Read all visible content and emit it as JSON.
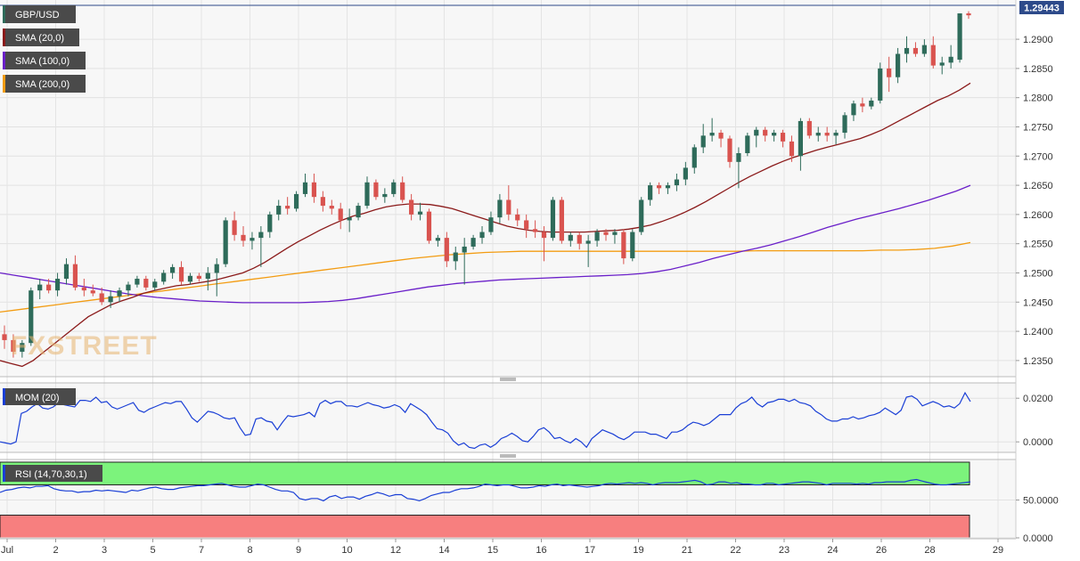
{
  "chart_data": {
    "type": "candlestick",
    "legend": [
      {
        "label": "GBP/USD",
        "color": "#2e6b5a"
      },
      {
        "label": "SMA (20,0)",
        "color": "#8b1a1a"
      },
      {
        "label": "SMA (100,0)",
        "color": "#6a1fc9"
      },
      {
        "label": "SMA (200,0)",
        "color": "#f39c12"
      }
    ],
    "last_price": "1.29443",
    "x_labels": [
      "Jul",
      "2",
      "3",
      "5",
      "7",
      "8",
      "9",
      "10",
      "12",
      "14",
      "15",
      "16",
      "17",
      "19",
      "21",
      "22",
      "23",
      "24",
      "26",
      "28",
      "29"
    ],
    "y_ticks": [
      "1.2350",
      "1.2400",
      "1.2450",
      "1.2500",
      "1.2550",
      "1.2600",
      "1.2650",
      "1.2700",
      "1.2750",
      "1.2800",
      "1.2850",
      "1.2900"
    ],
    "ylim": [
      1.233,
      1.2955
    ],
    "candles": [
      [
        1.2395,
        1.241,
        1.237,
        1.2385
      ],
      [
        1.2385,
        1.2395,
        1.2355,
        1.2365
      ],
      [
        1.2365,
        1.2385,
        1.2355,
        1.238
      ],
      [
        1.238,
        1.2475,
        1.2375,
        1.247
      ],
      [
        1.247,
        1.249,
        1.2455,
        1.248
      ],
      [
        1.248,
        1.249,
        1.2465,
        1.247
      ],
      [
        1.247,
        1.25,
        1.246,
        1.249
      ],
      [
        1.249,
        1.2525,
        1.248,
        1.2515
      ],
      [
        1.2515,
        1.253,
        1.247,
        1.2475
      ],
      [
        1.2475,
        1.249,
        1.246,
        1.247
      ],
      [
        1.247,
        1.248,
        1.246,
        1.2465
      ],
      [
        1.2465,
        1.2475,
        1.2445,
        1.245
      ],
      [
        1.245,
        1.247,
        1.244,
        1.246
      ],
      [
        1.246,
        1.2475,
        1.245,
        1.247
      ],
      [
        1.247,
        1.2485,
        1.246,
        1.248
      ],
      [
        1.248,
        1.2495,
        1.2475,
        1.249
      ],
      [
        1.249,
        1.2495,
        1.247,
        1.2475
      ],
      [
        1.2475,
        1.249,
        1.247,
        1.2485
      ],
      [
        1.2485,
        1.2505,
        1.248,
        1.25
      ],
      [
        1.25,
        1.2515,
        1.249,
        1.251
      ],
      [
        1.251,
        1.252,
        1.248,
        1.2485
      ],
      [
        1.2485,
        1.25,
        1.248,
        1.2495
      ],
      [
        1.2495,
        1.25,
        1.2485,
        1.249
      ],
      [
        1.249,
        1.251,
        1.247,
        1.25
      ],
      [
        1.25,
        1.2525,
        1.246,
        1.2515
      ],
      [
        1.2515,
        1.2595,
        1.251,
        1.259
      ],
      [
        1.259,
        1.2605,
        1.2555,
        1.2565
      ],
      [
        1.2565,
        1.258,
        1.2545,
        1.2555
      ],
      [
        1.2555,
        1.257,
        1.254,
        1.256
      ],
      [
        1.256,
        1.258,
        1.251,
        1.257
      ],
      [
        1.257,
        1.2605,
        1.256,
        1.26
      ],
      [
        1.26,
        1.2625,
        1.259,
        1.2615
      ],
      [
        1.2615,
        1.263,
        1.26,
        1.261
      ],
      [
        1.261,
        1.264,
        1.2605,
        1.2635
      ],
      [
        1.2635,
        1.267,
        1.263,
        1.2655
      ],
      [
        1.2655,
        1.267,
        1.262,
        1.263
      ],
      [
        1.263,
        1.264,
        1.2605,
        1.2615
      ],
      [
        1.2615,
        1.2625,
        1.26,
        1.261
      ],
      [
        1.261,
        1.262,
        1.2575,
        1.259
      ],
      [
        1.259,
        1.261,
        1.257,
        1.2595
      ],
      [
        1.2595,
        1.262,
        1.259,
        1.2615
      ],
      [
        1.2615,
        1.2665,
        1.261,
        1.2655
      ],
      [
        1.2655,
        1.266,
        1.2625,
        1.263
      ],
      [
        1.263,
        1.2645,
        1.262,
        1.2635
      ],
      [
        1.2635,
        1.266,
        1.263,
        1.2655
      ],
      [
        1.2655,
        1.2665,
        1.262,
        1.2625
      ],
      [
        1.2625,
        1.2635,
        1.259,
        1.26
      ],
      [
        1.26,
        1.262,
        1.259,
        1.2605
      ],
      [
        1.2605,
        1.261,
        1.255,
        1.2555
      ],
      [
        1.2555,
        1.2565,
        1.2545,
        1.256
      ],
      [
        1.256,
        1.257,
        1.251,
        1.252
      ],
      [
        1.252,
        1.2545,
        1.2505,
        1.2535
      ],
      [
        1.2535,
        1.256,
        1.248,
        1.2545
      ],
      [
        1.2545,
        1.2565,
        1.254,
        1.256
      ],
      [
        1.256,
        1.258,
        1.255,
        1.257
      ],
      [
        1.257,
        1.2605,
        1.2565,
        1.2595
      ],
      [
        1.2595,
        1.2635,
        1.2585,
        1.2625
      ],
      [
        1.2625,
        1.265,
        1.259,
        1.26
      ],
      [
        1.26,
        1.261,
        1.258,
        1.259
      ],
      [
        1.259,
        1.26,
        1.256,
        1.2575
      ],
      [
        1.2575,
        1.259,
        1.256,
        1.257
      ],
      [
        1.257,
        1.258,
        1.252,
        1.256
      ],
      [
        1.256,
        1.263,
        1.2555,
        1.2625
      ],
      [
        1.2625,
        1.263,
        1.255,
        1.2555
      ],
      [
        1.2555,
        1.257,
        1.2545,
        1.2565
      ],
      [
        1.2565,
        1.257,
        1.254,
        1.255
      ],
      [
        1.255,
        1.2565,
        1.251,
        1.2555
      ],
      [
        1.2555,
        1.2575,
        1.2545,
        1.257
      ],
      [
        1.257,
        1.2575,
        1.2555,
        1.2565
      ],
      [
        1.2565,
        1.2575,
        1.255,
        1.257
      ],
      [
        1.257,
        1.2575,
        1.2515,
        1.2525
      ],
      [
        1.2525,
        1.2575,
        1.252,
        1.257
      ],
      [
        1.257,
        1.263,
        1.2565,
        1.2625
      ],
      [
        1.2625,
        1.2655,
        1.2615,
        1.265
      ],
      [
        1.265,
        1.2655,
        1.2635,
        1.2645
      ],
      [
        1.2645,
        1.2655,
        1.2635,
        1.265
      ],
      [
        1.265,
        1.267,
        1.264,
        1.266
      ],
      [
        1.266,
        1.269,
        1.265,
        1.268
      ],
      [
        1.268,
        1.272,
        1.267,
        1.2715
      ],
      [
        1.2715,
        1.2755,
        1.2705,
        1.2735
      ],
      [
        1.2735,
        1.2765,
        1.2725,
        1.274
      ],
      [
        1.274,
        1.2745,
        1.2715,
        1.273
      ],
      [
        1.273,
        1.2735,
        1.268,
        1.269
      ],
      [
        1.269,
        1.2715,
        1.2645,
        1.2705
      ],
      [
        1.2705,
        1.274,
        1.27,
        1.2735
      ],
      [
        1.2735,
        1.275,
        1.2715,
        1.2745
      ],
      [
        1.2745,
        1.275,
        1.2725,
        1.2735
      ],
      [
        1.2735,
        1.2745,
        1.2725,
        1.274
      ],
      [
        1.274,
        1.2745,
        1.2715,
        1.2725
      ],
      [
        1.2725,
        1.2735,
        1.269,
        1.27
      ],
      [
        1.27,
        1.2765,
        1.2675,
        1.276
      ],
      [
        1.276,
        1.2765,
        1.273,
        1.2735
      ],
      [
        1.2735,
        1.275,
        1.2725,
        1.274
      ],
      [
        1.274,
        1.275,
        1.2725,
        1.2735
      ],
      [
        1.2735,
        1.2745,
        1.272,
        1.274
      ],
      [
        1.274,
        1.2775,
        1.273,
        1.277
      ],
      [
        1.277,
        1.2795,
        1.276,
        1.279
      ],
      [
        1.279,
        1.28,
        1.2775,
        1.2785
      ],
      [
        1.2785,
        1.28,
        1.278,
        1.2795
      ],
      [
        1.2795,
        1.286,
        1.279,
        1.285
      ],
      [
        1.285,
        1.287,
        1.281,
        1.2835
      ],
      [
        1.2835,
        1.2885,
        1.2825,
        1.2875
      ],
      [
        1.2875,
        1.2905,
        1.286,
        1.2885
      ],
      [
        1.2885,
        1.2895,
        1.287,
        1.2875
      ],
      [
        1.2875,
        1.29,
        1.287,
        1.289
      ],
      [
        1.289,
        1.2905,
        1.285,
        1.2855
      ],
      [
        1.2855,
        1.287,
        1.284,
        1.286
      ],
      [
        1.286,
        1.289,
        1.285,
        1.287
      ],
      [
        1.2865,
        1.2944,
        1.286,
        1.29443
      ],
      [
        1.29443,
        1.2948,
        1.2935,
        1.2941
      ]
    ],
    "sma20": [
      1.235,
      1.2345,
      1.234,
      1.235,
      1.2365,
      1.238,
      1.2395,
      1.241,
      1.2425,
      1.2435,
      1.2445,
      1.2452,
      1.2458,
      1.2465,
      1.247,
      1.2474,
      1.2478,
      1.248,
      1.2483,
      1.2486,
      1.249,
      1.2495,
      1.25,
      1.2508,
      1.2518,
      1.253,
      1.2542,
      1.2553,
      1.2563,
      1.2573,
      1.2582,
      1.259,
      1.2597,
      1.2602,
      1.2608,
      1.2613,
      1.2616,
      1.2618,
      1.2618,
      1.2617,
      1.2614,
      1.261,
      1.2604,
      1.2598,
      1.2592,
      1.2586,
      1.258,
      1.2576,
      1.2573,
      1.2571,
      1.257,
      1.257,
      1.257,
      1.257,
      1.2571,
      1.2572,
      1.2573,
      1.2575,
      1.2578,
      1.2582,
      1.2588,
      1.2595,
      1.2603,
      1.2612,
      1.2622,
      1.2633,
      1.2644,
      1.2655,
      1.2665,
      1.2674,
      1.2683,
      1.2691,
      1.2698,
      1.2704,
      1.271,
      1.2715,
      1.272,
      1.2725,
      1.273,
      1.2737,
      1.2745,
      1.2755,
      1.2765,
      1.2775,
      1.2785,
      1.2795,
      1.2803,
      1.2813,
      1.2825
    ],
    "sma100": [
      1.25,
      1.2496,
      1.2492,
      1.2488,
      1.2484,
      1.248,
      1.2476,
      1.2472,
      1.2468,
      1.2464,
      1.2461,
      1.2458,
      1.2456,
      1.2454,
      1.2452,
      1.2451,
      1.245,
      1.2449,
      1.2449,
      1.2449,
      1.2449,
      1.2449,
      1.245,
      1.2451,
      1.2453,
      1.2456,
      1.246,
      1.2464,
      1.2468,
      1.2472,
      1.2476,
      1.2479,
      1.2482,
      1.2484,
      1.2486,
      1.2488,
      1.2489,
      1.249,
      1.2491,
      1.2492,
      1.2493,
      1.2494,
      1.2495,
      1.2496,
      1.2497,
      1.2499,
      1.2502,
      1.2506,
      1.2512,
      1.2518,
      1.2525,
      1.2531,
      1.2537,
      1.2542,
      1.2548,
      1.2555,
      1.2562,
      1.257,
      1.2578,
      1.2585,
      1.2592,
      1.2598,
      1.2604,
      1.261,
      1.2617,
      1.2624,
      1.2632,
      1.264,
      1.265
    ],
    "sma200": [
      1.2433,
      1.2437,
      1.2441,
      1.2445,
      1.2449,
      1.2453,
      1.2457,
      1.2461,
      1.2465,
      1.2469,
      1.2473,
      1.2477,
      1.2481,
      1.2485,
      1.2489,
      1.2493,
      1.2497,
      1.2501,
      1.2505,
      1.2509,
      1.2513,
      1.2517,
      1.2521,
      1.2525,
      1.2528,
      1.2531,
      1.2533,
      1.2535,
      1.2536,
      1.2537,
      1.2537,
      1.2537,
      1.2537,
      1.2537,
      1.2537,
      1.2537,
      1.2537,
      1.2537,
      1.2537,
      1.2537,
      1.2537,
      1.2537,
      1.2538,
      1.2538,
      1.2538,
      1.2538,
      1.2538,
      1.2538,
      1.2538,
      1.2539,
      1.2539,
      1.254,
      1.2542,
      1.2546,
      1.2552
    ],
    "mom": {
      "label": "MOM (20)",
      "y_ticks": [
        "0.0200",
        "0.0000"
      ],
      "ylim": [
        -0.004,
        0.0262
      ],
      "values": [
        0.0,
        -0.0005,
        -0.001,
        0.0,
        0.013,
        0.014,
        0.016,
        0.0175,
        0.0155,
        0.015,
        0.016,
        0.018,
        0.017,
        0.0165,
        0.016,
        0.019,
        0.019,
        0.0185,
        0.0205,
        0.018,
        0.0185,
        0.016,
        0.015,
        0.016,
        0.017,
        0.018,
        0.0145,
        0.0135,
        0.015,
        0.016,
        0.017,
        0.018,
        0.0175,
        0.0185,
        0.0185,
        0.015,
        0.011,
        0.009,
        0.0115,
        0.014,
        0.0135,
        0.0125,
        0.011,
        0.0105,
        0.011,
        0.0065,
        0.003,
        0.0035,
        0.0105,
        0.011,
        0.0095,
        0.009,
        0.0055,
        0.009,
        0.012,
        0.0115,
        0.012,
        0.0125,
        0.0135,
        0.0115,
        0.0175,
        0.019,
        0.0175,
        0.0185,
        0.0185,
        0.0165,
        0.0165,
        0.016,
        0.017,
        0.018,
        0.017,
        0.0165,
        0.0155,
        0.016,
        0.017,
        0.016,
        0.0135,
        0.0175,
        0.016,
        0.0145,
        0.0125,
        0.009,
        0.006,
        0.0055,
        0.004,
        0.0005,
        -0.0015,
        -0.0005,
        -0.0025,
        -0.003,
        -0.0015,
        -0.001,
        -0.0025,
        -0.001,
        0.0015,
        0.0025,
        0.004,
        0.0025,
        0.0005,
        0.0,
        0.0025,
        0.0055,
        0.0065,
        0.0045,
        0.0015,
        0.002,
        0.0005,
        -0.0005,
        0.0015,
        0.0,
        -0.0025,
        0.0015,
        0.0035,
        0.0055,
        0.0045,
        0.0035,
        0.002,
        0.001,
        0.0025,
        0.0045,
        0.0045,
        0.0045,
        0.0035,
        0.0035,
        0.0025,
        0.0015,
        0.0045,
        0.0045,
        0.0055,
        0.0075,
        0.009,
        0.0085,
        0.0075,
        0.0085,
        0.0105,
        0.0125,
        0.0125,
        0.0125,
        0.0155,
        0.0175,
        0.0185,
        0.0205,
        0.0175,
        0.016,
        0.018,
        0.0185,
        0.0195,
        0.0195,
        0.0185,
        0.0195,
        0.018,
        0.0175,
        0.0165,
        0.014,
        0.0125,
        0.0105,
        0.0095,
        0.0095,
        0.0105,
        0.0105,
        0.0115,
        0.0105,
        0.011,
        0.012,
        0.0125,
        0.0135,
        0.0155,
        0.014,
        0.0125,
        0.0145,
        0.0205,
        0.021,
        0.0195,
        0.0165,
        0.0175,
        0.0185,
        0.0175,
        0.016,
        0.0165,
        0.0155,
        0.0175,
        0.0225,
        0.0185
      ]
    },
    "rsi": {
      "label": "RSI (14,70,30,1)",
      "y_ticks": [
        "50.0000",
        "0.0000"
      ],
      "upper": 70,
      "lower": 30,
      "ylim": [
        0,
        100
      ],
      "values": [
        60,
        63,
        64,
        66,
        67,
        66,
        68,
        68,
        69,
        65,
        63,
        62,
        62,
        60,
        61,
        61,
        63,
        62,
        63,
        62,
        61,
        60,
        63,
        62,
        64,
        66,
        67,
        65,
        64,
        64,
        66,
        67,
        68,
        69,
        69,
        70,
        71,
        72,
        70,
        68,
        67,
        67,
        69,
        71,
        70,
        67,
        64,
        62,
        62,
        60,
        52,
        50,
        52,
        52,
        49,
        54,
        56,
        52,
        54,
        54,
        51,
        55,
        57,
        60,
        58,
        55,
        57,
        57,
        52,
        51,
        49,
        52,
        56,
        58,
        60,
        60,
        63,
        65,
        65,
        66,
        68,
        71,
        70,
        69,
        70,
        70,
        68,
        66,
        66,
        67,
        69,
        68,
        70,
        71,
        69,
        70,
        69,
        68,
        67,
        68,
        69,
        71,
        72,
        71,
        72,
        73,
        72,
        73,
        72,
        70,
        72,
        73,
        73,
        73,
        74,
        75,
        76,
        74,
        70,
        71,
        74,
        74,
        72,
        73,
        71,
        71,
        70,
        70,
        72,
        72,
        70,
        71,
        72,
        73,
        74,
        74,
        73,
        72,
        70,
        72,
        72,
        72,
        72,
        71,
        72,
        71,
        73,
        73,
        74,
        74,
        74,
        74,
        76,
        77,
        75,
        73,
        71,
        70,
        70,
        71,
        72,
        73,
        74
      ]
    }
  }
}
